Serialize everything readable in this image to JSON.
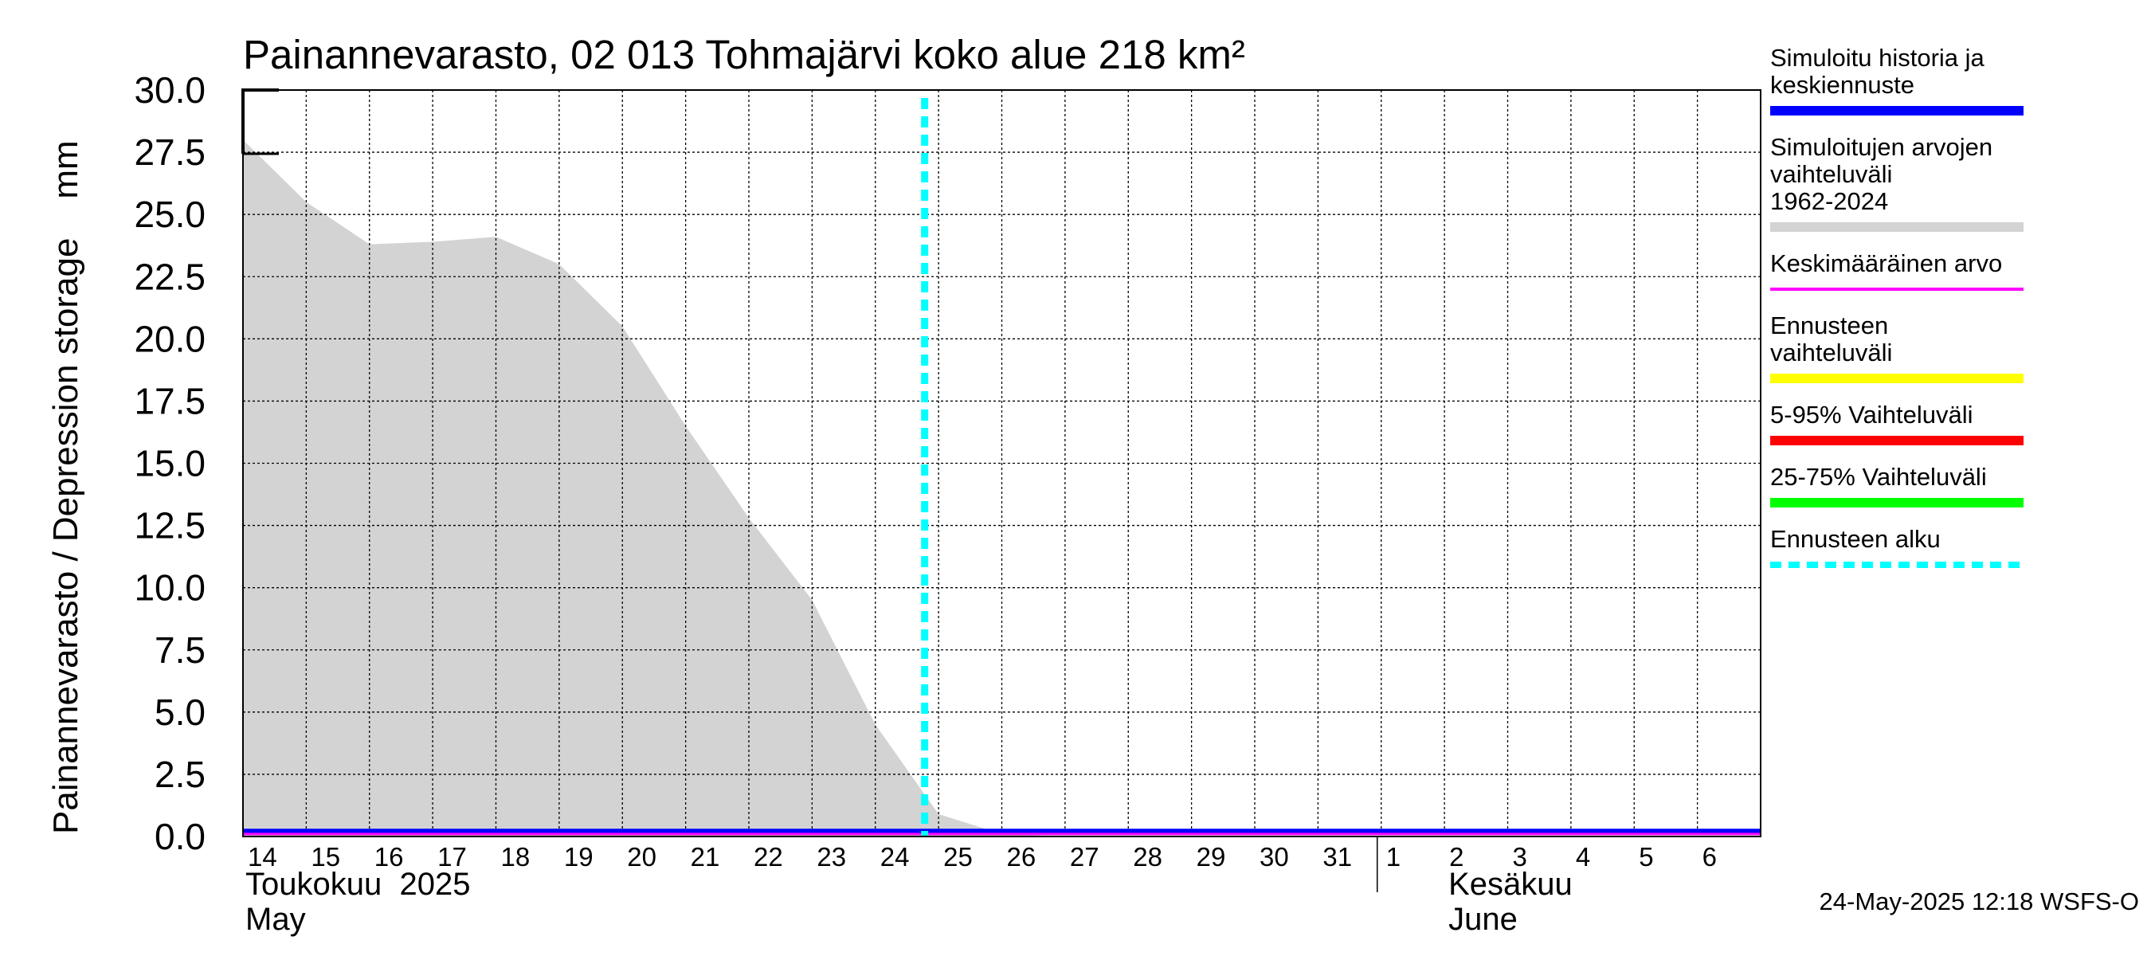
{
  "chart_data": {
    "type": "area",
    "title": "Painannevarasto, 02 013 Tohmajärvi koko alue 218 km²",
    "ylabel": "Painannevarasto / Depression storage    mm",
    "ylim": [
      0,
      30
    ],
    "yticks": [
      "0.0",
      "2.5",
      "5.0",
      "7.5",
      "10.0",
      "12.5",
      "15.0",
      "17.5",
      "20.0",
      "22.5",
      "25.0",
      "27.5",
      "30.0"
    ],
    "x_start": "2025-05-14",
    "x_end": "2025-06-07",
    "x_tick_labels": [
      "14",
      "15",
      "16",
      "17",
      "18",
      "19",
      "20",
      "21",
      "22",
      "23",
      "24",
      "25",
      "26",
      "27",
      "28",
      "29",
      "30",
      "31",
      "1",
      "2",
      "3",
      "4",
      "5",
      "6"
    ],
    "month_labels": [
      {
        "fi": "Toukokuu  2025",
        "en": "May"
      },
      {
        "fi": "Kesäkuu",
        "en": "June"
      }
    ],
    "forecast_start": "2025-05-24",
    "grid": true,
    "legend_placement": "right",
    "range_band": {
      "name": "Simuloitujen arvojen vaihteluväli 1962-2024",
      "color": "#d3d3d3",
      "x": [
        "2025-05-14",
        "2025-05-15",
        "2025-05-16",
        "2025-05-17",
        "2025-05-18",
        "2025-05-19",
        "2025-05-20",
        "2025-05-21",
        "2025-05-22",
        "2025-05-23",
        "2025-05-24",
        "2025-05-25",
        "2025-05-26",
        "2025-05-27",
        "2025-06-07"
      ],
      "upper": [
        28.0,
        25.5,
        23.8,
        23.9,
        24.1,
        23.0,
        20.5,
        16.5,
        12.8,
        9.5,
        4.5,
        0.9,
        0.1,
        0.0,
        0.0
      ],
      "lower": [
        0,
        0,
        0,
        0,
        0,
        0,
        0,
        0,
        0,
        0,
        0,
        0,
        0,
        0,
        0
      ]
    },
    "series": [
      {
        "name": "Simuloitu historia ja keskiennuste",
        "color": "#0000ff",
        "x": [
          "2025-05-14",
          "2025-06-07"
        ],
        "values": [
          0.2,
          0.2
        ]
      },
      {
        "name": "Keskimääräinen arvo",
        "color": "#ff00ff",
        "x": [
          "2025-05-14",
          "2025-06-07"
        ],
        "values": [
          0.1,
          0.1
        ]
      }
    ],
    "legend": [
      {
        "label": "Simuloitu historia ja keskiennuste",
        "color": "#0000ff",
        "style": "solid"
      },
      {
        "label": "Simuloitujen arvojen vaihteluväli 1962-2024",
        "color": "#d3d3d3",
        "style": "solid"
      },
      {
        "label": "Keskimääräinen arvo",
        "color": "#ff00ff",
        "style": "thin"
      },
      {
        "label": "Ennusteen vaihteluväli",
        "color": "#ffff00",
        "style": "solid"
      },
      {
        "label": "5-95% Vaihteluväli",
        "color": "#ff0000",
        "style": "solid"
      },
      {
        "label": "25-75% Vaihteluväli",
        "color": "#00ff00",
        "style": "solid"
      },
      {
        "label": "Ennusteen alku",
        "color": "#00ffff",
        "style": "dashed"
      }
    ]
  },
  "footer": "24-May-2025 12:18 WSFS-O"
}
